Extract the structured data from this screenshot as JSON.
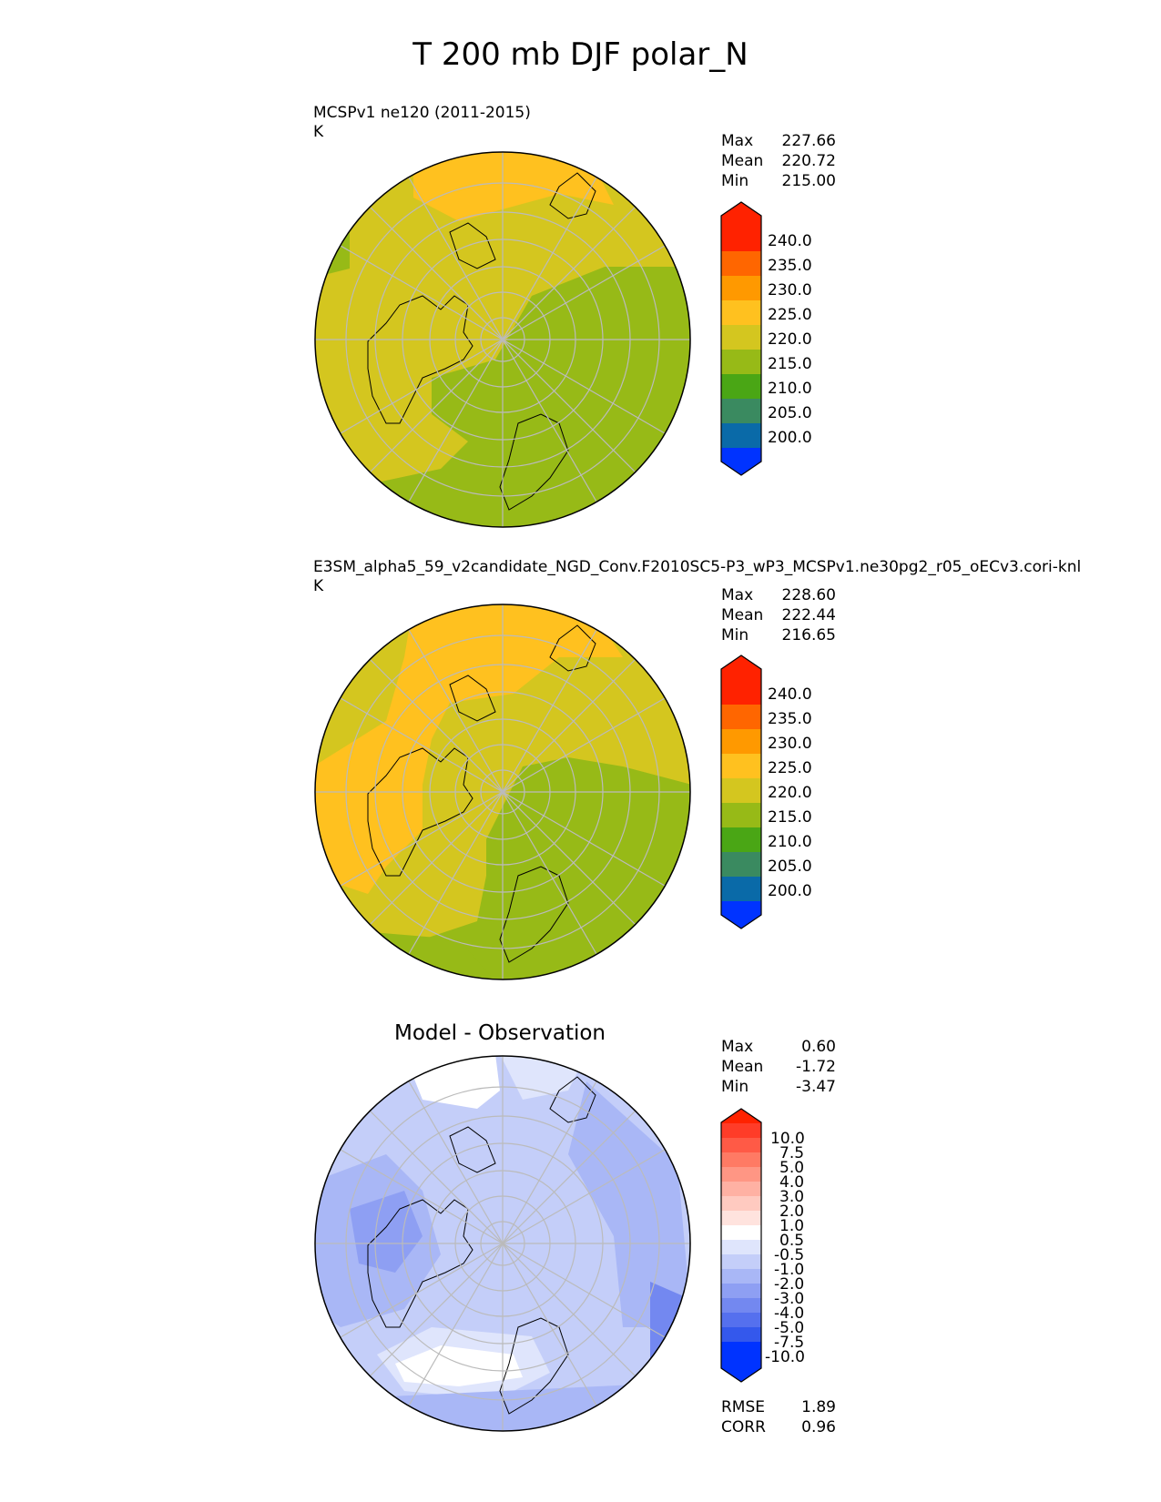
{
  "figure": {
    "title": "T 200 mb DJF polar_N",
    "panels": [
      {
        "label": "MCSPv1 ne120 (2011-2015)",
        "units": "K",
        "stats": [
          {
            "name": "Max",
            "value": "227.66"
          },
          {
            "name": "Mean",
            "value": "220.72"
          },
          {
            "name": "Min",
            "value": "215.00"
          }
        ]
      },
      {
        "label": "E3SM_alpha5_59_v2candidate_NGD_Conv.F2010SC5-P3_wP3_MCSPv1.ne30pg2_r05_oECv3.cori-knl",
        "units": "K",
        "stats": [
          {
            "name": "Max",
            "value": "228.60"
          },
          {
            "name": "Mean",
            "value": "222.44"
          },
          {
            "name": "Min",
            "value": "216.65"
          }
        ]
      },
      {
        "label": "Model - Observation",
        "stats": [
          {
            "name": "Max",
            "value": "0.60"
          },
          {
            "name": "Mean",
            "value": "-1.72"
          },
          {
            "name": "Min",
            "value": "-3.47"
          }
        ],
        "metrics": [
          {
            "name": "RMSE",
            "value": "1.89"
          },
          {
            "name": "CORR",
            "value": "0.96"
          }
        ]
      }
    ],
    "colorbar_abs": {
      "labels": [
        "240.0",
        "235.0",
        "230.0",
        "225.0",
        "220.0",
        "215.0",
        "210.0",
        "205.0",
        "200.0"
      ],
      "colors": [
        "#ff2200",
        "#ff6600",
        "#ff9900",
        "#ffc11f",
        "#d4c61f",
        "#97ba17",
        "#4aa615",
        "#3a8a60",
        "#0a6aa8",
        "#0033ff"
      ]
    },
    "colorbar_diff": {
      "labels": [
        "10.0",
        "7.5",
        "5.0",
        "4.0",
        "3.0",
        "2.0",
        "1.0",
        "0.5",
        "-0.5",
        "-1.0",
        "-2.0",
        "-3.0",
        "-4.0",
        "-5.0",
        "-7.5",
        "-10.0"
      ],
      "colors": [
        "#ff2200",
        "#ff3c28",
        "#ff5a46",
        "#ff7a64",
        "#ff9684",
        "#ffb1a3",
        "#ffcac0",
        "#ffe3de",
        "#ffffff",
        "#dfe5fc",
        "#c4cef9",
        "#a9b7f6",
        "#8e9ff3",
        "#7388f0",
        "#5570ee",
        "#3458ec",
        "#0033ff"
      ]
    },
    "colors": {
      "land_outline": "#000000",
      "gridline": "#bbbbbb"
    }
  }
}
